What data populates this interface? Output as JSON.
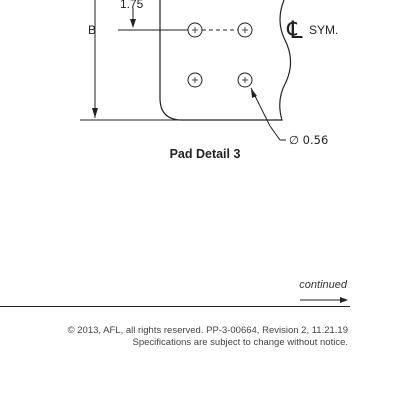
{
  "drawing": {
    "dim_top_label": "1.75",
    "dim_side_label": "B",
    "centerline_label": "SYM.",
    "centerline_symbol": "℄",
    "hole_label": "∅ 0.56"
  },
  "caption": "Pad Detail 3",
  "continued": "continued",
  "footer": {
    "line1": "© 2013, AFL, all rights reserved. PP-3-00664, Revision 2, 11.21.19",
    "line2": "Specifications are subject to change without notice."
  }
}
